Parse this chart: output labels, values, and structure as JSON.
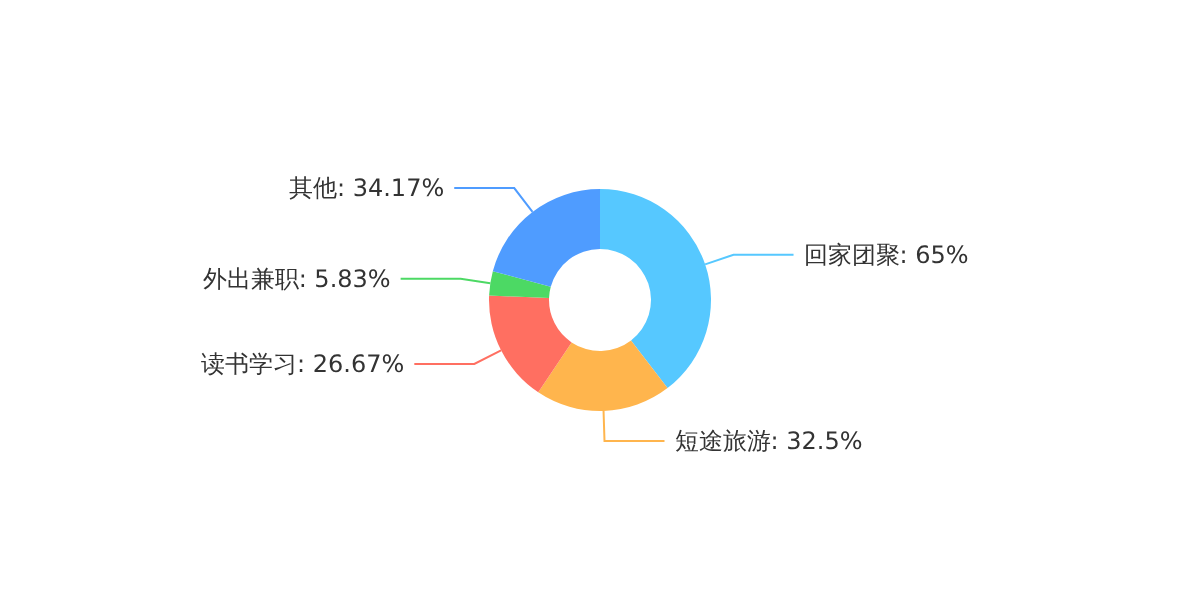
{
  "chart_data": {
    "type": "donut",
    "categories": [
      "回家团聚",
      "短途旅游",
      "读书学习",
      "外出兼职",
      "其他"
    ],
    "values": [
      65,
      32.5,
      26.67,
      5.83,
      34.17
    ],
    "value_labels": [
      "65%",
      "32.5%",
      "26.67%",
      "5.83%",
      "34.17%"
    ],
    "colors": [
      "#56c8ff",
      "#ffb54d",
      "#ff6f61",
      "#4cd964",
      "#4f9cff"
    ]
  }
}
